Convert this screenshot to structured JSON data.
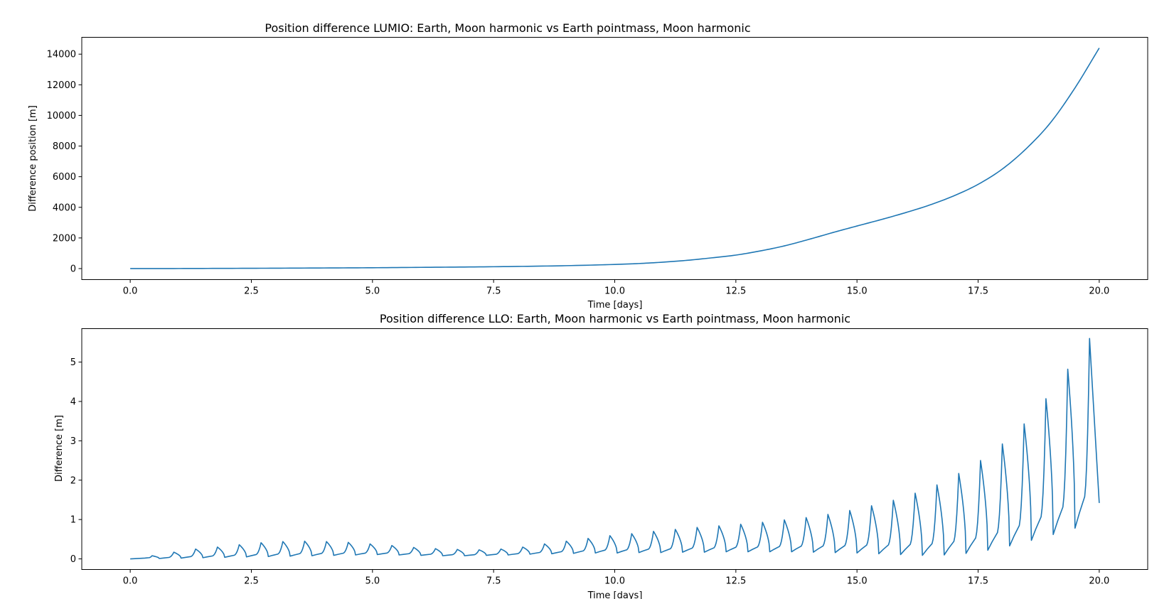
{
  "chart_data": [
    {
      "type": "line",
      "title": "Position difference LUMIO: Earth, Moon harmonic vs Earth pointmass, Moon harmonic",
      "xlabel": "Time [days]",
      "ylabel": "Difference position  [m]",
      "xlim": [
        -1.0,
        21.0
      ],
      "ylim": [
        -720,
        15100
      ],
      "xticks": [
        0.0,
        2.5,
        5.0,
        7.5,
        10.0,
        12.5,
        15.0,
        17.5,
        20.0
      ],
      "xtick_labels": [
        "0.0",
        "2.5",
        "5.0",
        "7.5",
        "10.0",
        "12.5",
        "15.0",
        "17.5",
        "20.0"
      ],
      "yticks": [
        0,
        2000,
        4000,
        6000,
        8000,
        10000,
        12000,
        14000
      ],
      "ytick_labels": [
        "0",
        "2000",
        "4000",
        "6000",
        "8000",
        "10000",
        "12000",
        "14000"
      ],
      "grid": false,
      "color": "#1f77b4",
      "series": [
        {
          "x": [
            0,
            1,
            2,
            3,
            4,
            5,
            6,
            7,
            8,
            9,
            10,
            10.5,
            11,
            11.5,
            12,
            12.5,
            13,
            13.5,
            14,
            14.5,
            15,
            15.5,
            16,
            16.5,
            17,
            17.5,
            18,
            18.5,
            19,
            19.5,
            20
          ],
          "y": [
            0,
            5,
            15,
            25,
            40,
            55,
            80,
            105,
            140,
            190,
            270,
            330,
            420,
            540,
            700,
            880,
            1150,
            1480,
            1900,
            2350,
            2780,
            3200,
            3650,
            4150,
            4750,
            5500,
            6500,
            7850,
            9550,
            11800,
            14400
          ]
        }
      ]
    },
    {
      "type": "line",
      "title": "Position difference LLO: Earth, Moon harmonic vs Earth pointmass, Moon harmonic",
      "xlabel": "Time [days]",
      "ylabel": "Difference [m]",
      "xlim": [
        -1.0,
        21.0
      ],
      "ylim": [
        -0.27,
        5.85
      ],
      "xticks": [
        0.0,
        2.5,
        5.0,
        7.5,
        10.0,
        12.5,
        15.0,
        17.5,
        20.0
      ],
      "xtick_labels": [
        "0.0",
        "2.5",
        "5.0",
        "7.5",
        "10.0",
        "12.5",
        "15.0",
        "17.5",
        "20.0"
      ],
      "yticks": [
        0,
        1,
        2,
        3,
        4,
        5
      ],
      "ytick_labels": [
        "0",
        "1",
        "2",
        "3",
        "4",
        "5"
      ],
      "grid": false,
      "color": "#1f77b4",
      "orbit_period_days": 0.45,
      "peaks": {
        "t": [
          0.45,
          0.9,
          1.35,
          1.8,
          2.25,
          2.7,
          3.15,
          3.6,
          4.05,
          4.5,
          4.95,
          5.4,
          5.85,
          6.3,
          6.75,
          7.2,
          7.65,
          8.1,
          8.55,
          9.0,
          9.45,
          9.9,
          10.35,
          10.8,
          11.25,
          11.7,
          12.15,
          12.6,
          13.05,
          13.5,
          13.95,
          14.4,
          14.85,
          15.3,
          15.75,
          16.2,
          16.65,
          17.1,
          17.55,
          18.0,
          18.45,
          18.9,
          19.35,
          19.8
        ],
        "y": [
          0.08,
          0.17,
          0.25,
          0.3,
          0.36,
          0.41,
          0.44,
          0.45,
          0.44,
          0.42,
          0.38,
          0.34,
          0.29,
          0.26,
          0.24,
          0.23,
          0.25,
          0.3,
          0.38,
          0.45,
          0.52,
          0.59,
          0.64,
          0.7,
          0.75,
          0.8,
          0.84,
          0.88,
          0.93,
          0.99,
          1.05,
          1.13,
          1.23,
          1.35,
          1.49,
          1.67,
          1.88,
          2.17,
          2.5,
          2.92,
          3.43,
          4.07,
          4.82,
          5.6
        ]
      },
      "minima": {
        "t": [
          0.6,
          1.05,
          1.5,
          1.95,
          2.4,
          2.85,
          3.3,
          3.75,
          4.2,
          4.65,
          5.1,
          5.55,
          6.0,
          6.45,
          6.9,
          7.35,
          7.8,
          8.25,
          8.7,
          9.15,
          9.6,
          10.05,
          10.5,
          10.95,
          11.4,
          11.85,
          12.3,
          12.75,
          13.2,
          13.65,
          14.1,
          14.55,
          15.0,
          15.45,
          15.9,
          16.35,
          16.8,
          17.25,
          17.7,
          18.15,
          18.6,
          19.05,
          19.5
        ],
        "y": [
          0.01,
          0.02,
          0.03,
          0.04,
          0.05,
          0.06,
          0.07,
          0.08,
          0.09,
          0.1,
          0.11,
          0.1,
          0.09,
          0.08,
          0.08,
          0.09,
          0.1,
          0.12,
          0.13,
          0.14,
          0.15,
          0.15,
          0.16,
          0.16,
          0.17,
          0.17,
          0.18,
          0.18,
          0.18,
          0.18,
          0.17,
          0.16,
          0.15,
          0.13,
          0.11,
          0.09,
          0.1,
          0.14,
          0.22,
          0.33,
          0.47,
          0.62,
          0.78
        ]
      },
      "end": {
        "t": 20.0,
        "y": 1.42
      }
    }
  ]
}
